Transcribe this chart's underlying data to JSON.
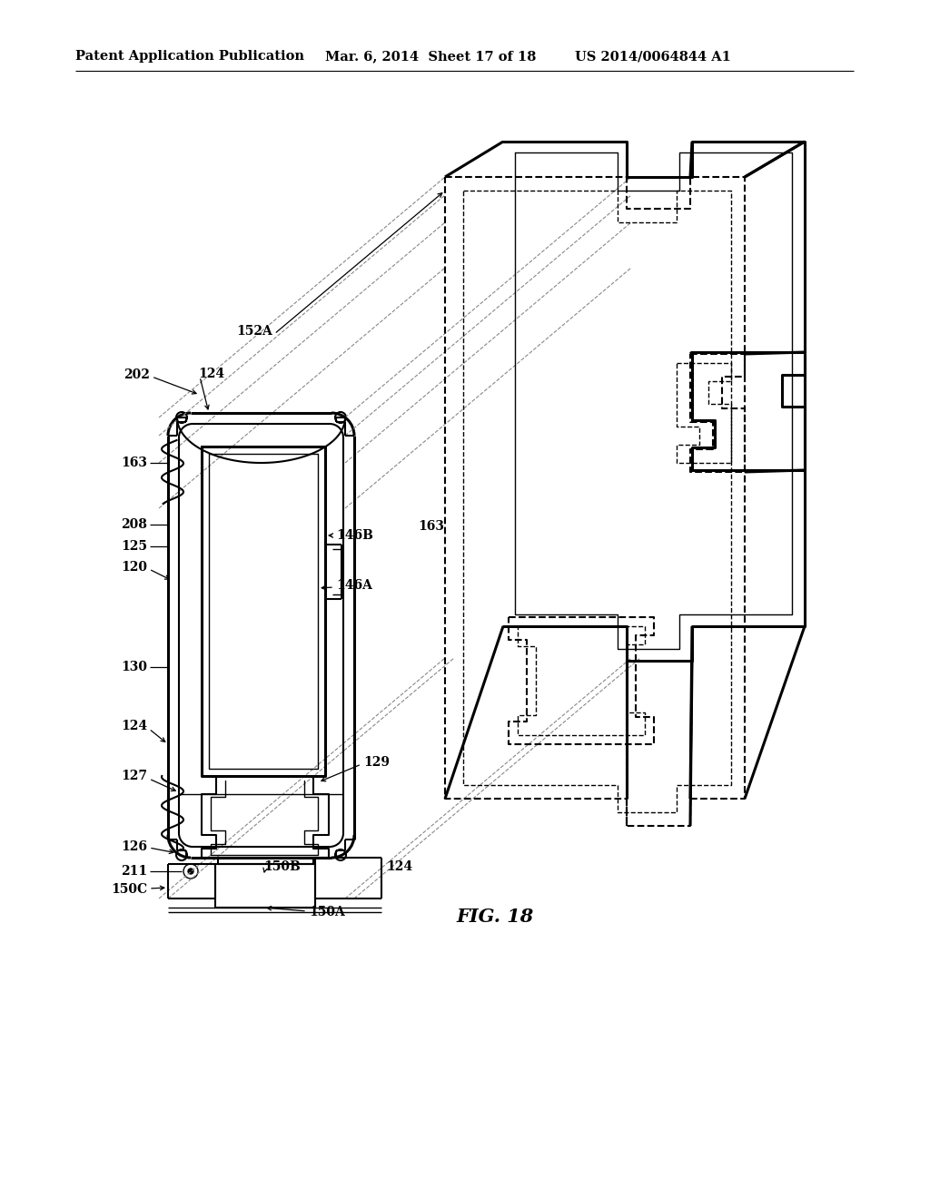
{
  "header_left": "Patent Application Publication",
  "header_center": "Mar. 6, 2014  Sheet 17 of 18",
  "header_right": "US 2014/0064844 A1",
  "fig_label": "FIG. 18",
  "background": "#ffffff",
  "line_color": "#000000",
  "header_fontsize": 10.5,
  "fig_label_fontsize": 15,
  "label_fontsize": 10,
  "lw_heavy": 2.2,
  "lw_main": 1.5,
  "lw_thin": 1.0,
  "lw_dash": 0.8
}
